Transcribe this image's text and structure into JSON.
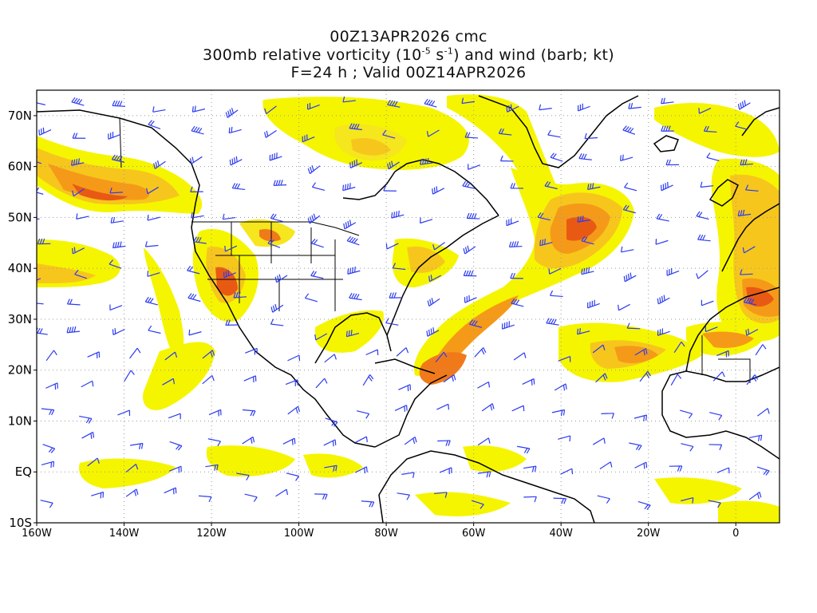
{
  "title": {
    "line1": "00Z13APR2026 cmc",
    "line2_prefix": "300mb relative vorticity (10",
    "line2_exp1": "-5",
    "line2_mid": " s",
    "line2_exp2": "-1",
    "line2_suffix": ") and wind (barb; kt)",
    "line3": "F=24 h ; Valid 00Z14APR2026"
  },
  "axes": {
    "lat_labels": [
      "70N",
      "60N",
      "50N",
      "40N",
      "30N",
      "20N",
      "10N",
      "EQ",
      "10S"
    ],
    "lon_labels": [
      "160W",
      "140W",
      "120W",
      "100W",
      "80W",
      "60W",
      "40W",
      "20W",
      "0"
    ],
    "lat_values": [
      70,
      60,
      50,
      40,
      30,
      20,
      10,
      0,
      -10
    ],
    "lon_values": [
      -160,
      -140,
      -120,
      -100,
      -80,
      -60,
      -40,
      -20,
      0
    ],
    "lon_range": [
      -160,
      10
    ],
    "lat_range": [
      -10,
      75
    ],
    "grid": true
  },
  "colors": {
    "contour_levels": [
      "#f5f500",
      "#f5e61e",
      "#f7c61c",
      "#f59a18",
      "#f07a1a",
      "#e85a14"
    ],
    "barb": "#2c3cf0",
    "coast": "#000000",
    "grid": "#999999"
  },
  "map_layers": {
    "fill": "relative vorticity",
    "vectors": "wind barbs",
    "boundaries": "coastlines and political borders"
  }
}
